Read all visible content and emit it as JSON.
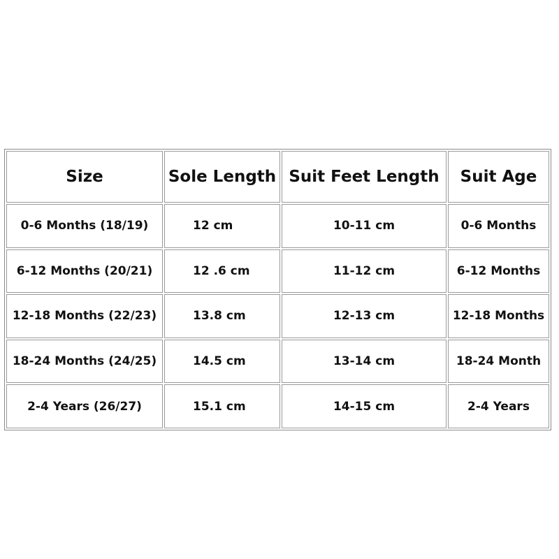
{
  "table": {
    "headers": [
      "Size",
      "Sole Length",
      "Suit Feet Length",
      "Suit Age"
    ],
    "rows": [
      [
        "0-6 Months (18/19)",
        "12 cm",
        "10-11 cm",
        "0-6 Months"
      ],
      [
        "6-12 Months (20/21)",
        "12 .6 cm",
        "11-12 cm",
        "6-12 Months"
      ],
      [
        "12-18 Months (22/23)",
        "13.8 cm",
        "12-13 cm",
        "12-18 Months"
      ],
      [
        "18-24 Months (24/25)",
        "14.5 cm",
        "13-14 cm",
        "18-24 Month"
      ],
      [
        "2-4 Years (26/27)",
        "15.1 cm",
        "14-15 cm",
        "2-4 Years"
      ]
    ]
  }
}
